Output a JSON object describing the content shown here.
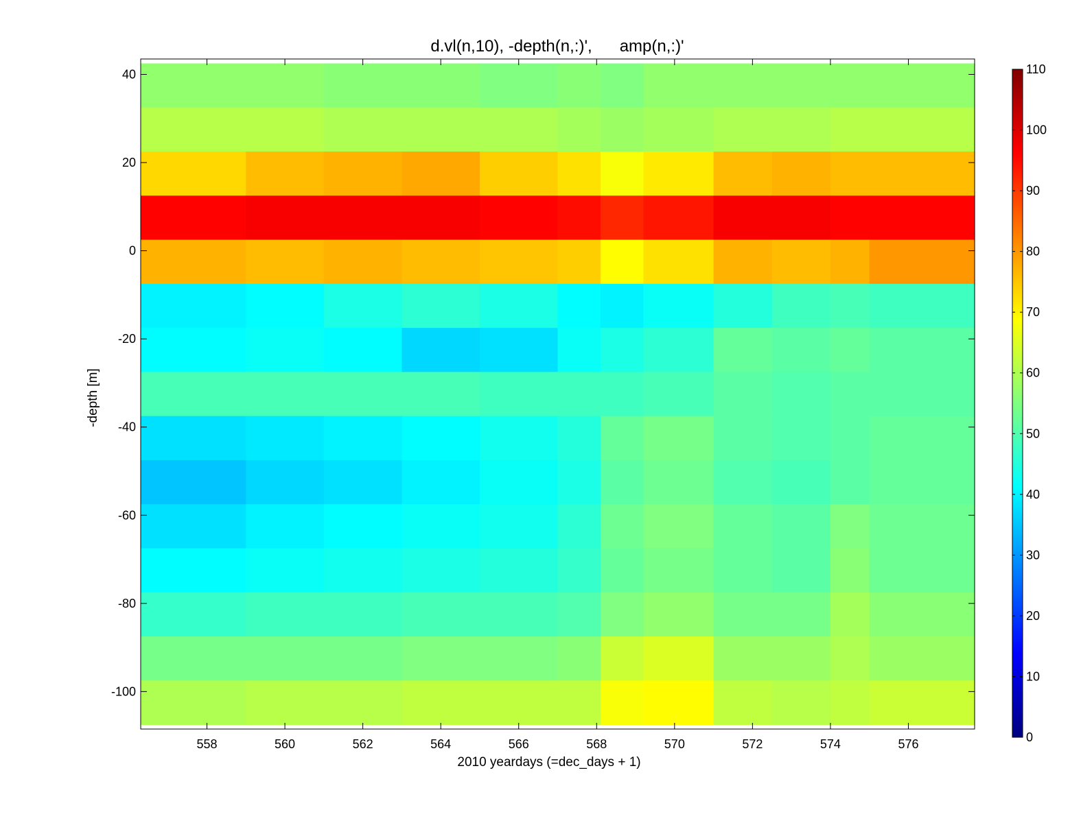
{
  "chart_data": {
    "type": "heatmap",
    "title": "d.vl(n,10), -depth(n,:)',      amp(n,:)'",
    "xlabel": "2010 yeardays (=dec_days + 1)",
    "ylabel": "-depth [m]",
    "xlim": [
      556.3,
      577.7
    ],
    "ylim": [
      -108.5,
      43.5
    ],
    "x_ticks": [
      558,
      560,
      562,
      564,
      566,
      568,
      570,
      572,
      574,
      576
    ],
    "y_ticks": [
      40,
      20,
      0,
      -20,
      -40,
      -60,
      -80,
      -100
    ],
    "colorbar": {
      "clim": [
        0,
        110
      ],
      "ticks": [
        0,
        10,
        20,
        30,
        40,
        50,
        60,
        70,
        80,
        90,
        100,
        110
      ],
      "colormap": "jet"
    },
    "x_segments": [
      556.3,
      559,
      561,
      563,
      565,
      567,
      568.1,
      569.2,
      571,
      572.5,
      574,
      575,
      577.7
    ],
    "bins": [
      {
        "depth": 37.5,
        "amp": [
          57,
          57,
          56,
          56,
          55,
          56,
          55,
          57,
          57,
          57,
          57,
          57
        ]
      },
      {
        "depth": 27.5,
        "amp": [
          61,
          61,
          60,
          60,
          60,
          59,
          58,
          59,
          60,
          60,
          61,
          61
        ]
      },
      {
        "depth": 17.5,
        "amp": [
          73,
          76,
          77,
          78,
          74,
          72,
          68,
          71,
          76,
          77,
          76,
          76
        ]
      },
      {
        "depth": 7.5,
        "amp": [
          96,
          97,
          97,
          97,
          96,
          95,
          92,
          94,
          97,
          97,
          96,
          96
        ]
      },
      {
        "depth": -2.5,
        "amp": [
          77,
          76,
          77,
          76,
          75,
          74,
          69,
          72,
          77,
          76,
          77,
          80
        ]
      },
      {
        "depth": -12.5,
        "amp": [
          40,
          41,
          44,
          46,
          44,
          41,
          40,
          42,
          45,
          48,
          49,
          48
        ]
      },
      {
        "depth": -22.5,
        "amp": [
          41,
          42,
          41,
          37,
          38,
          42,
          44,
          46,
          52,
          51,
          52,
          51
        ]
      },
      {
        "depth": -32.5,
        "amp": [
          49,
          49,
          49,
          49,
          48,
          48,
          48,
          49,
          51,
          50,
          51,
          51
        ]
      },
      {
        "depth": -42.5,
        "amp": [
          38,
          39,
          40,
          41,
          43,
          45,
          52,
          54,
          51,
          50,
          51,
          52
        ]
      },
      {
        "depth": -52.5,
        "amp": [
          35,
          37,
          38,
          40,
          42,
          44,
          51,
          53,
          50,
          49,
          51,
          52
        ]
      },
      {
        "depth": -62.5,
        "amp": [
          38,
          40,
          41,
          42,
          43,
          46,
          53,
          55,
          52,
          51,
          55,
          53
        ]
      },
      {
        "depth": -72.5,
        "amp": [
          41,
          42,
          43,
          44,
          45,
          47,
          52,
          54,
          52,
          51,
          56,
          53
        ]
      },
      {
        "depth": -82.5,
        "amp": [
          47,
          48,
          48,
          49,
          49,
          50,
          55,
          57,
          54,
          54,
          59,
          56
        ]
      },
      {
        "depth": -92.5,
        "amp": [
          54,
          54,
          54,
          55,
          55,
          56,
          63,
          65,
          58,
          58,
          60,
          58
        ]
      },
      {
        "depth": -102.5,
        "amp": [
          60,
          61,
          61,
          62,
          62,
          62,
          68,
          69,
          62,
          61,
          62,
          63
        ]
      }
    ]
  }
}
